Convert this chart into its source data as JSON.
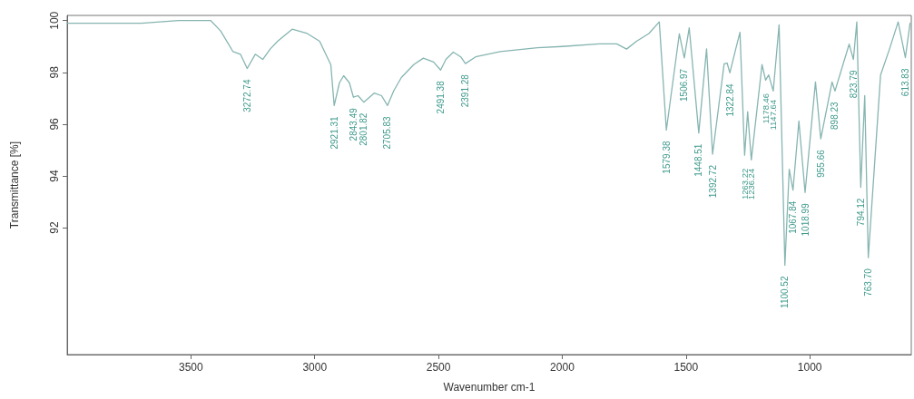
{
  "chart_data": {
    "type": "line",
    "xlabel": "Wavenumber cm-1",
    "ylabel": "Transmittance [%]",
    "xlim": [
      4000,
      590
    ],
    "xticks": [
      3500,
      3000,
      2500,
      2000,
      1500,
      1000
    ],
    "ylim": [
      87.1,
      100.2
    ],
    "yticks": [
      92,
      94,
      96,
      98,
      100
    ],
    "grid": false,
    "series": [
      {
        "color": "#86b5b1",
        "x": [
          4000,
          3850,
          3700,
          3550,
          3420,
          3380,
          3330,
          3300,
          3272.74,
          3240,
          3210,
          3180,
          3150,
          3091,
          3030,
          2980,
          2950,
          2935,
          2921.31,
          2900,
          2883,
          2860,
          2843.49,
          2825,
          2801.82,
          2760,
          2730,
          2705.83,
          2680,
          2650,
          2600,
          2561,
          2520,
          2491.38,
          2470,
          2440,
          2410,
          2391.28,
          2350,
          2250,
          2100,
          2000,
          1850,
          1780,
          1740,
          1700,
          1650,
          1608,
          1579.38,
          1527,
          1506.97,
          1487,
          1448.51,
          1417,
          1392.72,
          1346,
          1334,
          1322.84,
          1299,
          1282,
          1263.22,
          1251,
          1236.24,
          1193,
          1178.46,
          1166,
          1147.64,
          1124,
          1100.52,
          1083,
          1067.84,
          1044,
          1018.99,
          977,
          955.66,
          910,
          898.23,
          841,
          823.79,
          810,
          794.12,
          778,
          763.7,
          714,
          678,
          643,
          613.83,
          595
        ],
        "values": [
          99.9,
          99.9,
          99.9,
          100.0,
          100.0,
          99.6,
          98.8,
          98.7,
          98.15,
          98.7,
          98.5,
          98.9,
          99.2,
          99.67,
          99.5,
          99.2,
          98.6,
          98.3,
          96.72,
          97.6,
          97.87,
          97.6,
          97.04,
          97.1,
          96.85,
          97.2,
          97.1,
          96.72,
          97.3,
          97.8,
          98.3,
          98.55,
          98.4,
          98.09,
          98.5,
          98.78,
          98.6,
          98.34,
          98.6,
          98.8,
          98.95,
          99.0,
          99.1,
          99.1,
          98.9,
          99.2,
          99.5,
          99.95,
          95.77,
          99.49,
          98.56,
          99.72,
          95.66,
          98.91,
          94.84,
          98.33,
          98.36,
          97.98,
          98.91,
          99.55,
          94.8,
          96.48,
          94.62,
          98.3,
          97.7,
          97.9,
          97.28,
          99.84,
          90.55,
          94.26,
          93.45,
          96.12,
          93.36,
          97.63,
          95.43,
          97.63,
          97.28,
          99.09,
          98.5,
          99.95,
          93.56,
          97.1,
          90.84,
          97.9,
          98.9,
          99.95,
          98.57,
          99.9
        ]
      }
    ],
    "annotations": [
      {
        "text": "3272.74",
        "x": 3272.74,
        "y": 98.15
      },
      {
        "text": "2921.31",
        "x": 2921.31,
        "y": 96.72
      },
      {
        "text": "2843.49",
        "x": 2843.49,
        "y": 97.04
      },
      {
        "text": "2801.82",
        "x": 2801.82,
        "y": 96.85
      },
      {
        "text": "2705.83",
        "x": 2705.83,
        "y": 96.72
      },
      {
        "text": "2491.38",
        "x": 2491.38,
        "y": 98.09
      },
      {
        "text": "2391.28",
        "x": 2391.28,
        "y": 98.34
      },
      {
        "text": "1579.38",
        "x": 1579.38,
        "y": 95.77
      },
      {
        "text": "1506.97",
        "x": 1506.97,
        "y": 98.56
      },
      {
        "text": "1448.51",
        "x": 1448.51,
        "y": 95.66
      },
      {
        "text": "1392.72",
        "x": 1392.72,
        "y": 94.84
      },
      {
        "text": "1322.84",
        "x": 1322.84,
        "y": 97.98
      },
      {
        "text": "1263.22",
        "x": 1263.22,
        "y": 94.8
      },
      {
        "text": "1236.24",
        "x": 1236.24,
        "y": 94.62
      },
      {
        "text": "1178.46",
        "x": 1178.46,
        "y": 97.7
      },
      {
        "text": "1147.64",
        "x": 1147.64,
        "y": 97.28
      },
      {
        "text": "1100.52",
        "x": 1100.52,
        "y": 90.55
      },
      {
        "text": "1067.84",
        "x": 1067.84,
        "y": 93.45
      },
      {
        "text": "1018.99",
        "x": 1018.99,
        "y": 93.36
      },
      {
        "text": "955.66",
        "x": 955.66,
        "y": 95.43
      },
      {
        "text": "898.23",
        "x": 898.23,
        "y": 97.28
      },
      {
        "text": "823.79",
        "x": 823.79,
        "y": 98.5
      },
      {
        "text": "794.12",
        "x": 794.12,
        "y": 93.56
      },
      {
        "text": "763.70",
        "x": 763.7,
        "y": 90.84
      },
      {
        "text": "613.83",
        "x": 613.83,
        "y": 98.57
      }
    ]
  }
}
